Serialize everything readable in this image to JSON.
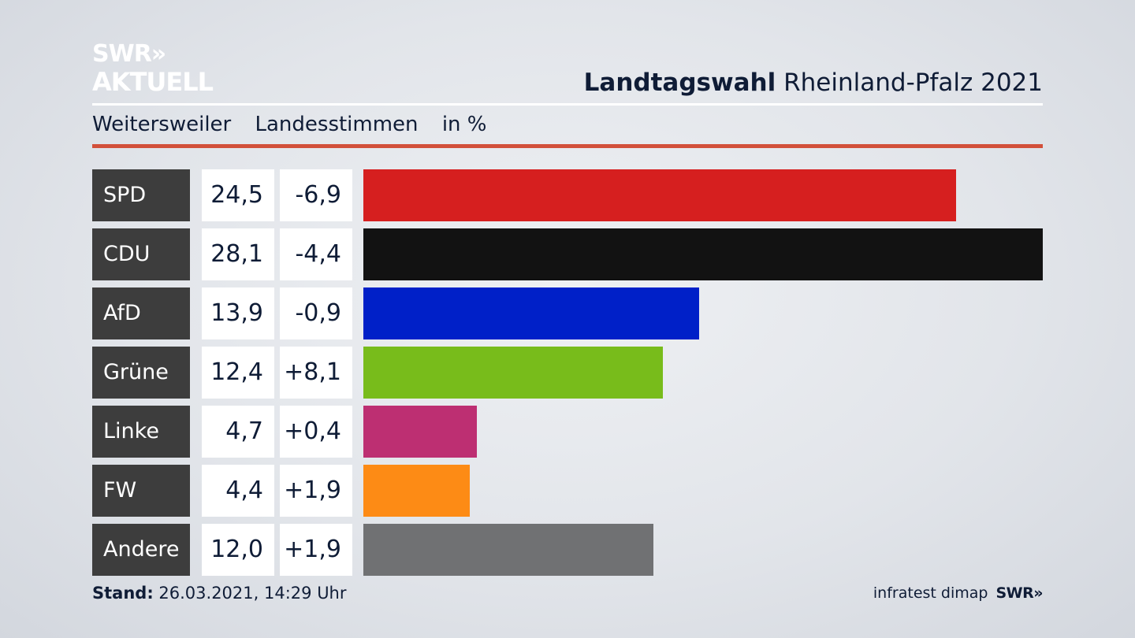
{
  "logo": {
    "line1": "SWR»",
    "line2": "AKTUELL"
  },
  "header": {
    "title_bold": "Landtagswahl",
    "title_rest": "Rheinland-Pfalz 2021"
  },
  "subtitle": {
    "place": "Weitersweiler",
    "measure": "Landesstimmen",
    "unit": "in %"
  },
  "footer": {
    "stand_label": "Stand:",
    "stand_value": "26.03.2021, 14:29 Uhr",
    "source": "infratest dimap",
    "brand": "SWR»"
  },
  "colors": {
    "SPD": "#d61f1f",
    "CDU": "#121212",
    "AfD": "#0020c8",
    "Grüne": "#78bc1b",
    "Linke": "#bd2f72",
    "FW": "#fd8b15",
    "Andere": "#707173"
  },
  "chart_data": {
    "type": "bar",
    "orientation": "horizontal",
    "categories": [
      "SPD",
      "CDU",
      "AfD",
      "Grüne",
      "Linke",
      "FW",
      "Andere"
    ],
    "values": [
      24.5,
      28.1,
      13.9,
      12.4,
      4.7,
      4.4,
      12.0
    ],
    "value_labels": [
      "24,5",
      "28,1",
      "13,9",
      "12,4",
      "4,7",
      "4,4",
      "12,0"
    ],
    "change_labels": [
      "-6,9",
      "-4,4",
      "-0,9",
      "+8,1",
      "+0,4",
      "+1,9",
      "+1,9"
    ],
    "changes": [
      -6.9,
      -4.4,
      -0.9,
      8.1,
      0.4,
      1.9,
      1.9
    ],
    "xlim": [
      0,
      28.1
    ]
  }
}
